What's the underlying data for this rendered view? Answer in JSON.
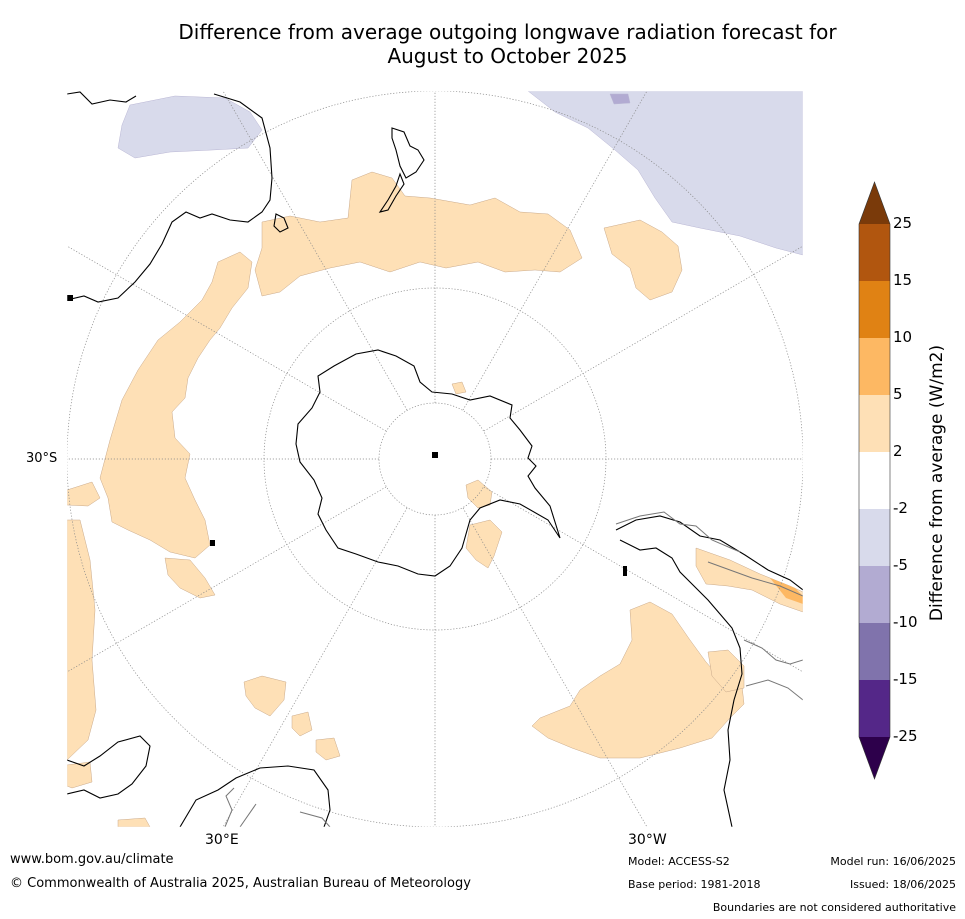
{
  "title": {
    "line1": "Difference from average outgoing longwave radiation forecast for",
    "line2": "August to October 2025"
  },
  "map_labels": {
    "lat": "30°S",
    "lon_left": "30°E",
    "lon_right": "30°W"
  },
  "colorbar": {
    "title": "Difference from average (W/m2)",
    "ticks": [
      "25",
      "15",
      "10",
      "5",
      "2",
      "-2",
      "-5",
      "-10",
      "-15",
      "-25"
    ],
    "colors": [
      "#7a3a0a",
      "#b1560f",
      "#e08214",
      "#fdb863",
      "#fee0b6",
      "#ffffff",
      "#d8daeb",
      "#b2abd2",
      "#8073ac",
      "#542788",
      "#2d004b"
    ]
  },
  "footer": {
    "website": "www.bom.gov.au/climate",
    "copyright": "© Commonwealth of Australia 2025, Australian Bureau of Meteorology",
    "model": "Model: ACCESS-S2",
    "base_period": "Base period: 1981-2018",
    "model_run": "Model run: 16/06/2025",
    "issued": "Issued: 18/06/2025",
    "disclaimer": "Boundaries are not considered authoritative"
  }
}
